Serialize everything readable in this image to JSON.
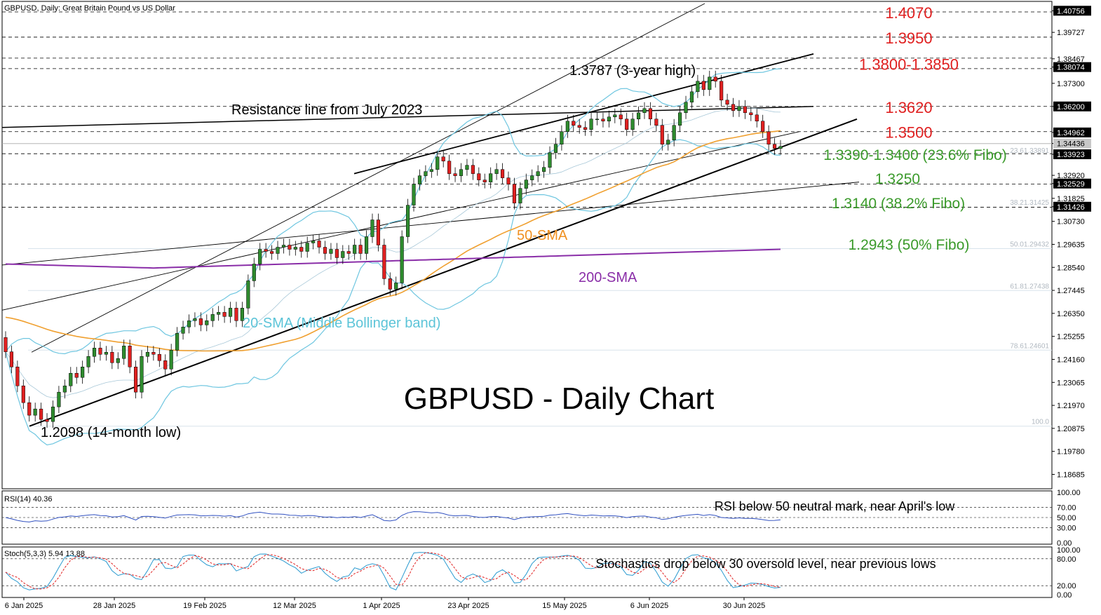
{
  "header": {
    "symbol_label": "GBPUSD, Daily:  Great Britain Pound vs US Dollar"
  },
  "chart_title": "GBPUSD - Daily Chart",
  "colors": {
    "bull": "#2e8b2e",
    "bear": "#e02020",
    "sma20": "#6ec6e0",
    "sma50": "#f0a030",
    "sma200": "#8a2ea8",
    "resistance_text": "#e02020",
    "support_text": "#3a9a2a",
    "bb_text": "#5cc4d8",
    "sma50_text": "#f09020",
    "sma200_text": "#8a2ea8"
  },
  "chart_data": {
    "type": "candlestick",
    "title": "GBPUSD - Daily Chart",
    "ylim": [
      1.18,
      1.412
    ],
    "x_ticks": [
      "6 Jan 2025",
      "28 Jan 2025",
      "19 Feb 2025",
      "12 Mar 2025",
      "1 Apr 2025",
      "23 Apr 2025",
      "15 May 2025",
      "6 Jun 2025",
      "30 Jun 2025"
    ],
    "y_ticks": [
      "1.40756",
      "1.39727",
      "1.38467",
      "1.38074",
      "1.37300",
      "1.36200",
      "1.34962",
      "1.34436",
      "1.33923",
      "1.32920",
      "1.32529",
      "1.31825",
      "1.31426",
      "1.30730",
      "1.29635",
      "1.28540",
      "1.27445",
      "1.26350",
      "1.25255",
      "1.24160",
      "1.23065",
      "1.21970",
      "1.20875",
      "1.19780",
      "1.18685"
    ],
    "closes": [
      1.2452,
      1.238,
      1.229,
      1.221,
      1.215,
      1.218,
      1.213,
      1.212,
      1.219,
      1.226,
      1.229,
      1.235,
      1.233,
      1.238,
      1.243,
      1.247,
      1.244,
      1.245,
      1.24,
      1.242,
      1.248,
      1.238,
      1.226,
      1.243,
      1.245,
      1.244,
      1.241,
      1.237,
      1.246,
      1.254,
      1.257,
      1.26,
      1.261,
      1.258,
      1.26,
      1.263,
      1.264,
      1.262,
      1.266,
      1.26,
      1.266,
      1.279,
      1.287,
      1.294,
      1.293,
      1.292,
      1.295,
      1.296,
      1.294,
      1.295,
      1.293,
      1.297,
      1.298,
      1.295,
      1.292,
      1.294,
      1.29,
      1.293,
      1.292,
      1.296,
      1.292,
      1.3,
      1.308,
      1.296,
      1.28,
      1.275,
      1.278,
      1.3,
      1.315,
      1.325,
      1.329,
      1.331,
      1.332,
      1.338,
      1.336,
      1.33,
      1.329,
      1.332,
      1.334,
      1.33,
      1.327,
      1.326,
      1.33,
      1.332,
      1.328,
      1.325,
      1.316,
      1.323,
      1.327,
      1.329,
      1.331,
      1.333,
      1.34,
      1.344,
      1.35,
      1.355,
      1.353,
      1.352,
      1.351,
      1.356,
      1.356,
      1.355,
      1.357,
      1.358,
      1.356,
      1.351,
      1.356,
      1.359,
      1.361,
      1.356,
      1.353,
      1.344,
      1.346,
      1.353,
      1.359,
      1.364,
      1.369,
      1.374,
      1.37,
      1.376,
      1.374,
      1.365,
      1.363,
      1.36,
      1.362,
      1.359,
      1.358,
      1.355,
      1.35,
      1.344,
      1.342,
      1.343
    ],
    "rsi": {
      "label": "RSI(14) 40.36",
      "ticks": [
        "100.00",
        "70.00",
        "50.00",
        "30.00",
        "0.00"
      ]
    },
    "stoch": {
      "label": "Stoch(5,3,3) 5.94 13.88",
      "ticks": [
        "100.00",
        "80.00",
        "20.00",
        "0.00"
      ]
    },
    "annotations": {
      "levels_red": [
        "1.4070",
        "1.3950",
        "1.3800-1.3850",
        "1.3620",
        "1.3500"
      ],
      "levels_green": [
        "1.3390-1.3400 (23.6% Fibo)",
        "1.3250",
        "1.3140 (38.2% Fibo)",
        "1.2943 (50% Fibo)"
      ],
      "high_note": "1.3787 (3-year high)",
      "low_note": "1.2098 (14-month low)",
      "resistance_note": "Resistance line from July 2023",
      "sma20_note": "20-SMA (Middle Bollinger band)",
      "sma50_note": "50-SMA",
      "sma200_note": "200-SMA",
      "rsi_note": "RSI below 50 neutral mark, near April's low",
      "stoch_note": "Stochastics drop below 30 oversold level, near previous lows",
      "fib_labels": [
        "23.61.33891",
        "38.21.31425",
        "50.01.29432",
        "61.81.27438",
        "78.61.24601",
        "100.0"
      ]
    }
  }
}
